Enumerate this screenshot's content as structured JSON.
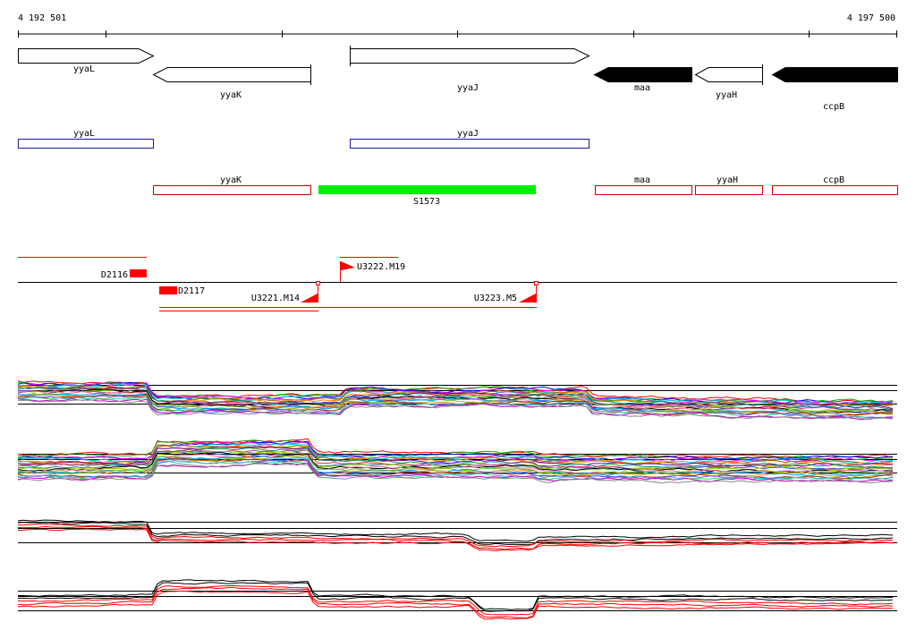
{
  "coords": {
    "start": "4 192 501",
    "end": "4 197 500",
    "start_value": 4192501,
    "end_value": 4197500
  },
  "genes": [
    {
      "name": "yyaL",
      "strand": "+",
      "filled": false
    },
    {
      "name": "yyaK",
      "strand": "-",
      "filled": false
    },
    {
      "name": "yyaJ",
      "strand": "+",
      "filled": false
    },
    {
      "name": "maa",
      "strand": "-",
      "filled": true
    },
    {
      "name": "yyaH",
      "strand": "-",
      "filled": false
    },
    {
      "name": "ccpB",
      "strand": "-",
      "filled": true
    }
  ],
  "forward_transcripts": [
    {
      "name": "yyaL",
      "color": "#1a1aa0"
    },
    {
      "name": "yyaJ",
      "color": "#1a1aa0"
    }
  ],
  "reverse_transcripts": [
    {
      "name": "yyaK",
      "color": "#cc0000"
    },
    {
      "name": "maa",
      "color": "#cc0000"
    },
    {
      "name": "yyaH",
      "color": "#cc0000"
    },
    {
      "name": "ccpB",
      "color": "#cc0000"
    }
  ],
  "srna": {
    "name": "S1573",
    "color": "#00ee00"
  },
  "segments": [
    {
      "name": "D2116"
    },
    {
      "name": "D2117"
    },
    {
      "name": "U3222.M19"
    },
    {
      "name": "U3221.M14"
    },
    {
      "name": "U3223.M5"
    }
  ],
  "colors": {
    "segment": "#ff0000",
    "feature_outline": "#cc0000",
    "gene_fill": "#000000"
  }
}
